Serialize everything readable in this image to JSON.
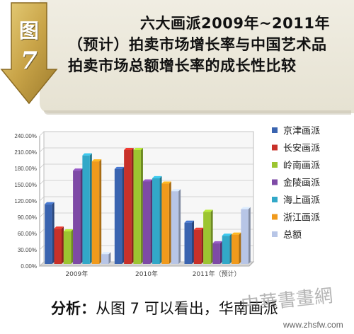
{
  "header": {
    "figure_char": "图",
    "figure_num": "7",
    "title_line1": "六大画派2009年~2011年",
    "title_rest": "（预计）拍卖市场增长率与中国艺术品拍卖市场总额增长率的成长性比较"
  },
  "footer": {
    "analysis_lead": "分析：",
    "analysis_text": "从图 7 可以看出，华南画派",
    "watermark": "中華書畫網",
    "site": "www.zhsfw.com"
  },
  "chart_data": {
    "type": "bar",
    "categories": [
      "2009年",
      "2010年",
      "2011年（预计）"
    ],
    "ylim": [
      0,
      240
    ],
    "ytick_labels": [
      "0.00%",
      "30.00%",
      "60.00%",
      "90.00%",
      "120.00%",
      "150.00%",
      "180.00%",
      "210.00%",
      "240.00%"
    ],
    "legend_position": "right",
    "series": [
      {
        "name": "京津画派",
        "color": "#3a64b0",
        "values": [
          110,
          175,
          76
        ]
      },
      {
        "name": "长安画派",
        "color": "#c8312a",
        "values": [
          65,
          210,
          63
        ]
      },
      {
        "name": "岭南画派",
        "color": "#9cc531",
        "values": [
          60,
          210,
          96
        ]
      },
      {
        "name": "金陵画派",
        "color": "#7e4aa6",
        "values": [
          172,
          152,
          38
        ]
      },
      {
        "name": "海上画派",
        "color": "#32a8c8",
        "values": [
          200,
          158,
          52
        ]
      },
      {
        "name": "浙江画派",
        "color": "#f09a1c",
        "values": [
          189,
          148,
          54
        ]
      },
      {
        "name": "总额",
        "color": "#b7c5e6",
        "values": [
          18,
          134,
          101
        ]
      }
    ]
  }
}
